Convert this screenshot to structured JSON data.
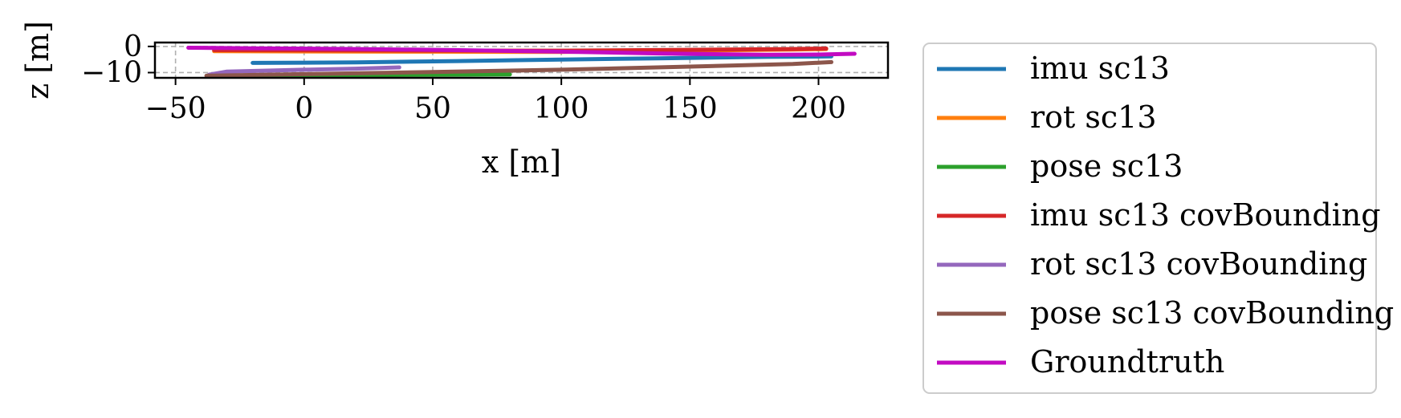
{
  "chart_data": {
    "type": "line",
    "xlabel": "x [m]",
    "ylabel": "z [m]",
    "xlim": [
      -58,
      227
    ],
    "ylim": [
      -12,
      1.5
    ],
    "xticks": [
      -50,
      0,
      50,
      100,
      150,
      200
    ],
    "xtick_labels": [
      "−50",
      "0",
      "50",
      "100",
      "150",
      "200"
    ],
    "yticks": [
      0,
      -10
    ],
    "ytick_labels": [
      "0",
      "−10"
    ],
    "grid": true,
    "legend_location": "outside right",
    "series": [
      {
        "name": "imu sc13",
        "color": "#1f77b4",
        "x": [
          -20,
          20,
          60,
          100,
          140,
          180,
          205
        ],
        "y": [
          -6.3,
          -6.1,
          -5.6,
          -5.0,
          -4.5,
          -4.0,
          -3.8
        ]
      },
      {
        "name": "rot sc13",
        "color": "#ff7f0e",
        "x": [
          -35,
          0,
          50,
          100,
          150,
          190,
          203
        ],
        "y": [
          -1.8,
          -1.9,
          -2.0,
          -2.1,
          -1.6,
          -1.2,
          -1.0
        ]
      },
      {
        "name": "pose sc13",
        "color": "#2ca02c",
        "x": [
          -35,
          0,
          40,
          80
        ],
        "y": [
          -11.3,
          -11.1,
          -10.9,
          -10.7
        ]
      },
      {
        "name": "imu sc13 covBounding",
        "color": "#d62728",
        "x": [
          -35,
          0,
          50,
          100,
          150,
          190,
          203
        ],
        "y": [
          -1.4,
          -1.5,
          -1.6,
          -1.6,
          -1.3,
          -1.0,
          -0.8
        ]
      },
      {
        "name": "rot sc13 covBounding",
        "color": "#9467bd",
        "x": [
          -37,
          -30,
          0,
          20,
          37
        ],
        "y": [
          -10.8,
          -9.6,
          -8.9,
          -8.5,
          -8.0
        ]
      },
      {
        "name": "pose sc13 covBounding",
        "color": "#8c564b",
        "x": [
          -38,
          0,
          50,
          100,
          150,
          190,
          205
        ],
        "y": [
          -11.2,
          -10.6,
          -9.8,
          -8.9,
          -7.7,
          -6.7,
          -6.0
        ]
      },
      {
        "name": "Groundtruth",
        "color": "#c20bc2",
        "x": [
          -45,
          -20,
          20,
          60,
          100,
          140,
          180,
          200,
          214
        ],
        "y": [
          -0.5,
          -0.7,
          -1.0,
          -1.4,
          -2.0,
          -2.7,
          -3.2,
          -3.1,
          -2.8
        ]
      }
    ]
  }
}
